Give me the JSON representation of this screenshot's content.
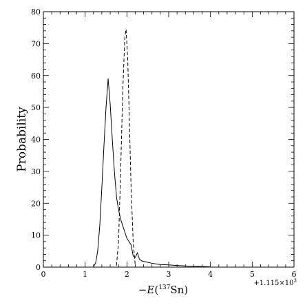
{
  "chart_data": {
    "type": "line",
    "title": "",
    "xlabel": "−E(¹³⁷Sn)",
    "xlabel_parts": {
      "prefix": "−",
      "var": "E",
      "open": "(",
      "sup": "137",
      "elem": "Sn",
      "close": ")"
    },
    "ylabel": "Probability",
    "x_offset_label": "+1.115×10³",
    "x_offset_parts": {
      "base": "+1.115×10",
      "sup": "3"
    },
    "xlim": [
      0,
      6
    ],
    "ylim": [
      0,
      80
    ],
    "grid": false,
    "legend": "none",
    "x_ticks": [
      0,
      1,
      2,
      3,
      4,
      5,
      6
    ],
    "y_ticks": [
      0,
      10,
      20,
      30,
      40,
      50,
      60,
      70,
      80
    ],
    "x_tick_labels": [
      "0",
      "1",
      "2",
      "3",
      "4",
      "5",
      "6"
    ],
    "y_tick_labels": [
      "0",
      "10",
      "20",
      "30",
      "40",
      "50",
      "60",
      "70",
      "80"
    ],
    "series": [
      {
        "style": "solid",
        "color": "#000000",
        "x": [
          1.2,
          1.25,
          1.3,
          1.35,
          1.4,
          1.45,
          1.5,
          1.55,
          1.6,
          1.65,
          1.7,
          1.75,
          1.8,
          1.85,
          1.9,
          1.95,
          2.0,
          2.05,
          2.1,
          2.15,
          2.2,
          2.25,
          2.3,
          2.35,
          2.4,
          2.5,
          2.6,
          2.7,
          2.8,
          3.0,
          3.2,
          3.5,
          3.8,
          4.0
        ],
        "values": [
          0.2,
          1.2,
          5.0,
          13.0,
          25.0,
          38.0,
          50.0,
          59.0,
          51.0,
          40.0,
          30.0,
          22.0,
          18.0,
          15.0,
          13.0,
          11.0,
          9.0,
          8.0,
          7.0,
          3.5,
          3.0,
          4.5,
          2.5,
          2.0,
          1.8,
          1.5,
          1.2,
          1.0,
          0.8,
          0.7,
          0.5,
          0.3,
          0.2,
          0.1
        ]
      },
      {
        "style": "dashed",
        "color": "#000000",
        "x": [
          1.75,
          1.8,
          1.85,
          1.9,
          1.95,
          1.98,
          2.02,
          2.06,
          2.1,
          2.15,
          2.2
        ],
        "values": [
          0.5,
          8.0,
          30.0,
          55.0,
          72.0,
          74.5,
          65.0,
          45.0,
          25.0,
          8.0,
          0.5
        ]
      }
    ]
  }
}
